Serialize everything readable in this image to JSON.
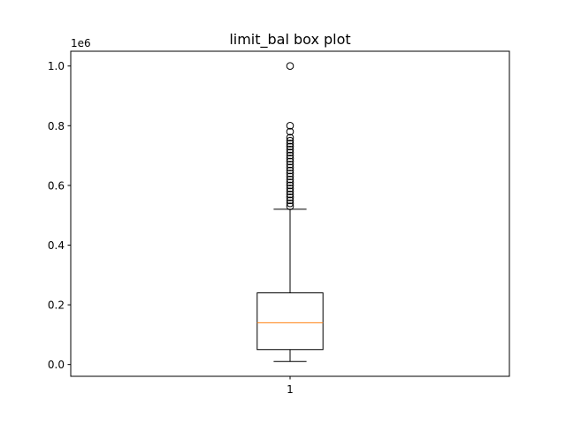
{
  "chart_data": {
    "type": "box",
    "title": "limit_bal box plot",
    "xlabel": "",
    "ylabel": "",
    "y_scale_label": "1e6",
    "y_scale_factor": 1000000,
    "categories": [
      "1"
    ],
    "ylim": [
      -0.0395,
      1.0495
    ],
    "yticks": [
      0.0,
      0.2,
      0.4,
      0.6,
      0.8,
      1.0
    ],
    "ytick_labels": [
      "0.0",
      "0.2",
      "0.4",
      "0.6",
      "0.8",
      "1.0"
    ],
    "boxes": [
      {
        "category": "1",
        "whisker_low": 10000,
        "q1": 50000,
        "median": 140000,
        "q3": 240000,
        "whisker_high": 520000,
        "outliers": [
          530000,
          540000,
          550000,
          560000,
          570000,
          580000,
          590000,
          600000,
          610000,
          620000,
          630000,
          640000,
          650000,
          660000,
          670000,
          680000,
          690000,
          700000,
          710000,
          720000,
          730000,
          740000,
          750000,
          760000,
          780000,
          800000,
          1000000
        ]
      }
    ],
    "colors": {
      "box": "#000000",
      "median": "#ff7f0e",
      "flier": "#000000"
    },
    "grid": false,
    "legend": "none"
  }
}
